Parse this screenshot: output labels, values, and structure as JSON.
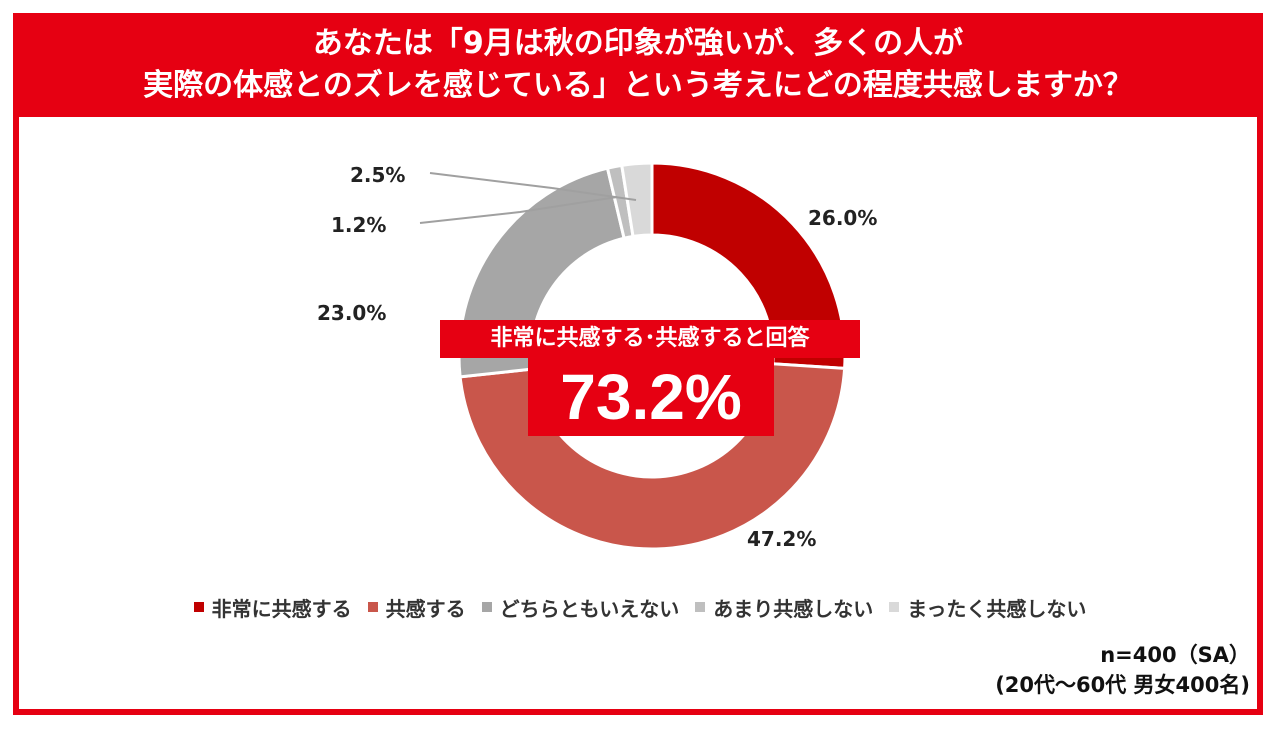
{
  "title": {
    "line1": "あなたは「9月は秋の印象が強いが、多くの人が",
    "line2": "実際の体感とのズレを感じている」という考えにどの程度共感しますか？"
  },
  "center_label": "非常に共感する･共感すると回答",
  "center_value": "73.2%",
  "note": {
    "line1": "n=400（SA）",
    "line2": "(20代～60代 男女400名)"
  },
  "chart_data": {
    "type": "pie",
    "donut": true,
    "categories": [
      "非常に共感する",
      "共感する",
      "どちらともいえない",
      "あまり共感しない",
      "まったく共感しない"
    ],
    "values": [
      26.0,
      47.2,
      23.0,
      1.2,
      2.5
    ],
    "labels": [
      "26.0%",
      "47.2%",
      "23.0%",
      "1.2%",
      "2.5%"
    ],
    "colors": [
      "#c00000",
      "#c9564b",
      "#a6a6a6",
      "#bfbfbf",
      "#d9d9d9"
    ],
    "legend_placement": "bottom"
  }
}
